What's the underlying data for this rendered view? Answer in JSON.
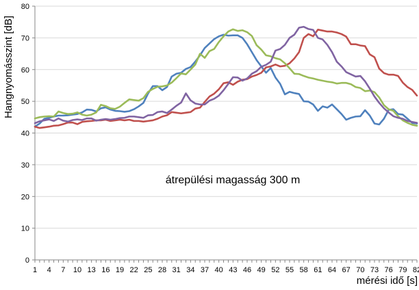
{
  "chart_data": {
    "type": "line",
    "title": "",
    "xlabel": "mérési idő [s]",
    "ylabel": "Hangnyomásszint [dB]",
    "annotation": "átrepülési magasság 300 m",
    "ylim": [
      0,
      80
    ],
    "yticks": [
      0,
      10,
      20,
      30,
      40,
      50,
      60,
      70,
      80
    ],
    "xlim": [
      1,
      82
    ],
    "xticks": [
      1,
      4,
      7,
      10,
      13,
      16,
      19,
      22,
      25,
      28,
      31,
      34,
      37,
      40,
      43,
      46,
      49,
      52,
      55,
      58,
      61,
      64,
      67,
      70,
      73,
      76,
      79,
      82
    ],
    "grid": "horizontal",
    "legend": "none",
    "x": [
      1,
      2,
      3,
      4,
      5,
      6,
      7,
      8,
      9,
      10,
      11,
      12,
      13,
      14,
      15,
      16,
      17,
      18,
      19,
      20,
      21,
      22,
      23,
      24,
      25,
      26,
      27,
      28,
      29,
      30,
      31,
      32,
      33,
      34,
      35,
      36,
      37,
      38,
      39,
      40,
      41,
      42,
      43,
      44,
      45,
      46,
      47,
      48,
      49,
      50,
      51,
      52,
      53,
      54,
      55,
      56,
      57,
      58,
      59,
      60,
      61,
      62,
      63,
      64,
      65,
      66,
      67,
      68,
      69,
      70,
      71,
      72,
      73,
      74,
      75,
      76,
      77,
      78,
      79,
      80,
      81,
      82
    ],
    "series": [
      {
        "color": "#4f81bd",
        "values": [
          42.0,
          43.0,
          44.5,
          44.8,
          45.2,
          45.5,
          45.5,
          45.6,
          45.8,
          46.0,
          46.5,
          47.4,
          47.3,
          46.8,
          47.8,
          48.1,
          47.4,
          47.0,
          46.9,
          46.7,
          46.9,
          47.5,
          48.4,
          49.5,
          52.5,
          54.8,
          54.8,
          53.5,
          54.5,
          57.8,
          58.7,
          59.0,
          60.2,
          60.8,
          62.5,
          64.5,
          66.8,
          68.2,
          69.6,
          70.5,
          71.0,
          70.7,
          70.8,
          70.8,
          70.0,
          68.0,
          65.5,
          63.0,
          61.0,
          59.0,
          60.5,
          57.5,
          55.5,
          52.2,
          53.0,
          52.6,
          52.3,
          50.0,
          49.9,
          49.0,
          47.0,
          48.4,
          48.0,
          49.0,
          47.5,
          46.0,
          44.2,
          44.8,
          45.2,
          45.3,
          47.2,
          45.5,
          43.0,
          42.7,
          44.5,
          47.3,
          47.5,
          46.0,
          45.8,
          44.5,
          43.2,
          43.0
        ]
      },
      {
        "color": "#c0504d",
        "values": [
          42.0,
          41.6,
          41.8,
          42.0,
          42.3,
          42.4,
          42.8,
          43.3,
          43.3,
          42.8,
          43.5,
          43.7,
          43.8,
          44.0,
          44.0,
          44.2,
          43.8,
          44.0,
          44.2,
          44.0,
          44.2,
          43.8,
          43.8,
          43.6,
          43.8,
          44.0,
          44.5,
          45.2,
          45.6,
          46.6,
          46.4,
          46.2,
          46.4,
          46.6,
          47.7,
          48.0,
          49.8,
          51.5,
          52.4,
          53.8,
          55.7,
          56.0,
          55.2,
          56.2,
          56.8,
          57.0,
          57.8,
          58.3,
          59.0,
          60.7,
          61.0,
          61.6,
          61.0,
          61.2,
          62.0,
          63.5,
          65.5,
          70.0,
          71.2,
          70.5,
          72.6,
          72.3,
          72.0,
          72.0,
          71.7,
          71.2,
          70.4,
          68.0,
          68.0,
          67.6,
          67.4,
          64.8,
          63.9,
          60.3,
          58.9,
          58.4,
          58.4,
          58.0,
          55.9,
          54.5,
          53.6,
          51.8
        ]
      },
      {
        "color": "#9bbb59",
        "values": [
          44.6,
          45.0,
          45.2,
          45.3,
          45.2,
          46.8,
          46.3,
          46.0,
          46.1,
          46.5,
          45.8,
          45.5,
          45.8,
          46.5,
          48.9,
          48.5,
          47.8,
          47.6,
          48.3,
          49.5,
          50.6,
          50.4,
          50.2,
          51.0,
          53.0,
          53.9,
          54.6,
          54.7,
          55.0,
          55.9,
          57.3,
          58.8,
          58.5,
          60.0,
          61.6,
          65.0,
          63.7,
          65.8,
          66.5,
          68.7,
          70.5,
          72.0,
          72.7,
          72.2,
          72.4,
          71.8,
          70.6,
          67.7,
          66.3,
          64.5,
          64.2,
          63.6,
          63.2,
          62.0,
          60.4,
          58.7,
          58.6,
          58.0,
          57.5,
          57.2,
          56.8,
          56.5,
          56.2,
          56.0,
          55.6,
          55.8,
          55.8,
          55.4,
          54.5,
          54.2,
          53.2,
          53.4,
          52.9,
          51.2,
          48.8,
          47.5,
          47.0,
          45.3,
          44.0,
          43.2,
          42.6,
          42.3
        ]
      },
      {
        "color": "#8064a2",
        "values": [
          43.1,
          43.7,
          44.0,
          44.3,
          43.8,
          44.6,
          43.9,
          43.6,
          44.1,
          44.3,
          44.1,
          44.6,
          44.6,
          43.9,
          44.2,
          44.4,
          44.2,
          44.4,
          44.7,
          44.8,
          45.2,
          45.2,
          45.0,
          44.8,
          45.6,
          45.7,
          46.6,
          46.8,
          46.3,
          47.4,
          48.6,
          49.6,
          52.5,
          50.3,
          49.3,
          49.0,
          49.0,
          50.2,
          50.8,
          51.8,
          53.5,
          55.5,
          57.6,
          57.5,
          56.5,
          57.2,
          58.7,
          59.5,
          60.9,
          61.5,
          62.5,
          66.0,
          66.5,
          67.8,
          70.0,
          71.0,
          73.2,
          73.5,
          72.8,
          72.5,
          70.0,
          69.5,
          67.8,
          65.5,
          62.5,
          61.0,
          59.2,
          58.5,
          57.8,
          58.0,
          56.3,
          54.0,
          51.5,
          49.5,
          47.8,
          46.5,
          45.3,
          44.8,
          44.5,
          43.8,
          43.5,
          43.2
        ]
      }
    ]
  }
}
